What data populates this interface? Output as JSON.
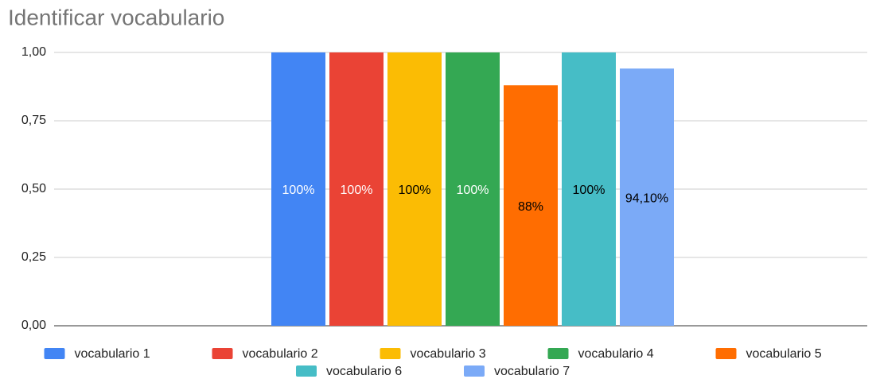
{
  "chart_data": {
    "type": "bar",
    "title": "Identificar vocabulario",
    "categories": [
      null
    ],
    "series": [
      {
        "name": "vocabulario 1",
        "color": "#4285f4",
        "label_color": "#ffffff",
        "values": [
          1
        ],
        "value_labels": [
          "100%"
        ]
      },
      {
        "name": "vocabulario 2",
        "color": "#ea4335",
        "label_color": "#ffffff",
        "values": [
          1
        ],
        "value_labels": [
          "100%"
        ]
      },
      {
        "name": "vocabulario 3",
        "color": "#fbbc04",
        "label_color": "#000000",
        "values": [
          1
        ],
        "value_labels": [
          "100%"
        ]
      },
      {
        "name": "vocabulario 4",
        "color": "#34a853",
        "label_color": "#ffffff",
        "values": [
          1
        ],
        "value_labels": [
          "100%"
        ]
      },
      {
        "name": "vocabulario 5",
        "color": "#ff6d01",
        "label_color": "#000000",
        "values": [
          0.88
        ],
        "value_labels": [
          "88%"
        ]
      },
      {
        "name": "vocabulario 6",
        "color": "#46bdc6",
        "label_color": "#000000",
        "values": [
          1
        ],
        "value_labels": [
          "100%"
        ]
      },
      {
        "name": "vocabulario 7",
        "color": "#7baaf7",
        "label_color": "#000000",
        "values": [
          0.941
        ],
        "value_labels": [
          "94,10%"
        ]
      }
    ],
    "ylim": [
      0,
      1
    ],
    "yticks": [
      {
        "value": 0,
        "label": "0,00"
      },
      {
        "value": 0.25,
        "label": "0,25"
      },
      {
        "value": 0.5,
        "label": "0,50"
      },
      {
        "value": 0.75,
        "label": "0,75"
      },
      {
        "value": 1,
        "label": "1,00"
      }
    ],
    "grid": true,
    "legend": "bottom"
  }
}
